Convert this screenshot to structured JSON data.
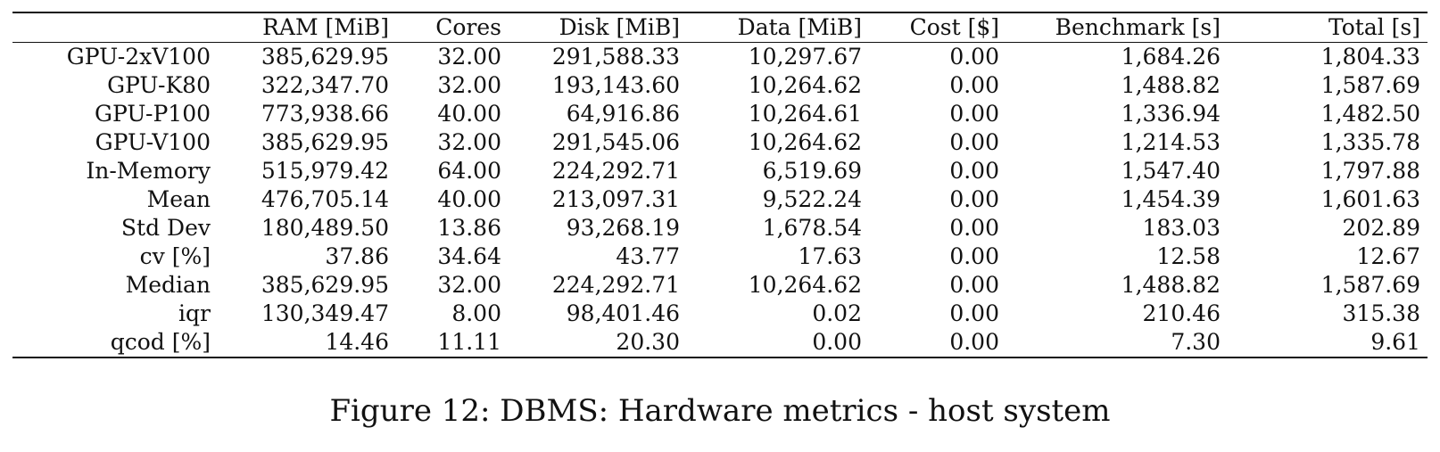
{
  "table": {
    "headers": [
      "",
      "RAM [MiB]",
      "Cores",
      "Disk [MiB]",
      "Data [MiB]",
      "Cost [$]",
      "Benchmark [s]",
      "Total [s]"
    ],
    "rows": [
      [
        "GPU-2xV100",
        "385,629.95",
        "32.00",
        "291,588.33",
        "10,297.67",
        "0.00",
        "1,684.26",
        "1,804.33"
      ],
      [
        "GPU-K80",
        "322,347.70",
        "32.00",
        "193,143.60",
        "10,264.62",
        "0.00",
        "1,488.82",
        "1,587.69"
      ],
      [
        "GPU-P100",
        "773,938.66",
        "40.00",
        "64,916.86",
        "10,264.61",
        "0.00",
        "1,336.94",
        "1,482.50"
      ],
      [
        "GPU-V100",
        "385,629.95",
        "32.00",
        "291,545.06",
        "10,264.62",
        "0.00",
        "1,214.53",
        "1,335.78"
      ],
      [
        "In-Memory",
        "515,979.42",
        "64.00",
        "224,292.71",
        "6,519.69",
        "0.00",
        "1,547.40",
        "1,797.88"
      ],
      [
        "Mean",
        "476,705.14",
        "40.00",
        "213,097.31",
        "9,522.24",
        "0.00",
        "1,454.39",
        "1,601.63"
      ],
      [
        "Std Dev",
        "180,489.50",
        "13.86",
        "93,268.19",
        "1,678.54",
        "0.00",
        "183.03",
        "202.89"
      ],
      [
        "cv [%]",
        "37.86",
        "34.64",
        "43.77",
        "17.63",
        "0.00",
        "12.58",
        "12.67"
      ],
      [
        "Median",
        "385,629.95",
        "32.00",
        "224,292.71",
        "10,264.62",
        "0.00",
        "1,488.82",
        "1,587.69"
      ],
      [
        "iqr",
        "130,349.47",
        "8.00",
        "98,401.46",
        "0.02",
        "0.00",
        "210.46",
        "315.38"
      ],
      [
        "qcod [%]",
        "14.46",
        "11.11",
        "20.30",
        "0.00",
        "0.00",
        "7.30",
        "9.61"
      ]
    ]
  },
  "caption": "Figure 12: DBMS: Hardware metrics - host system"
}
